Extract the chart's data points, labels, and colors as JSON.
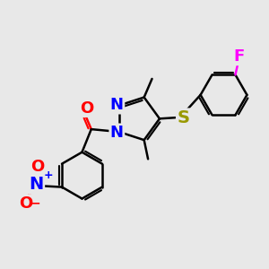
{
  "bg_color": "#e8e8e8",
  "bond_color": "#000000",
  "bond_width": 1.8,
  "atom_colors": {
    "N": "#0000ff",
    "O": "#ff0000",
    "S": "#999900",
    "F": "#ff00ff",
    "C": "#000000"
  },
  "font_size": 11,
  "font_size_large": 13
}
